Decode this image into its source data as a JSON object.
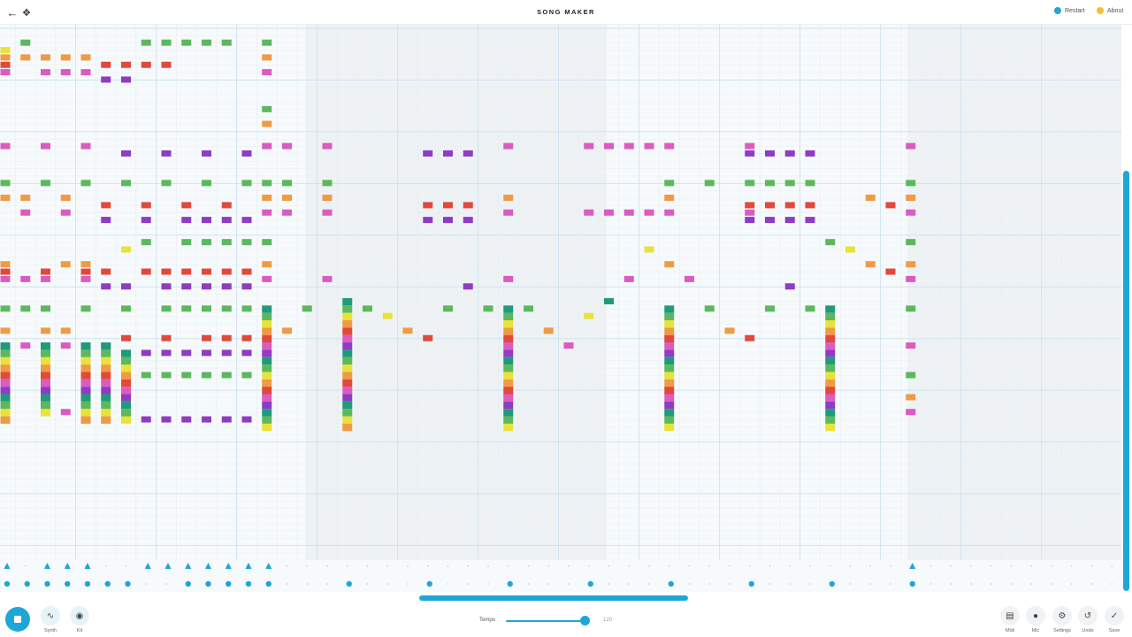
{
  "header": {
    "title": "SONG MAKER",
    "back_icon": "arrow-left-icon",
    "expand_icon": "move-icon",
    "restart_label": "Restart",
    "about_label": "About",
    "restart_color": "#1fa6d8",
    "about_color": "#f2c02e"
  },
  "footer": {
    "play_icon": "stop-icon",
    "instruments": [
      {
        "name": "synth",
        "label": "Synth",
        "icon": "waveform-icon"
      },
      {
        "name": "kit",
        "label": "Kit",
        "icon": "drum-icon"
      }
    ],
    "tempo_label": "Tempo",
    "tempo_value": "120",
    "tempo_fraction": 0.9,
    "tools": [
      {
        "name": "midi",
        "label": "Midi",
        "icon": "piano-icon"
      },
      {
        "name": "mic",
        "label": "Mic",
        "icon": "mic-icon"
      },
      {
        "name": "settings",
        "label": "Settings",
        "icon": "gear-icon"
      },
      {
        "name": "undo",
        "label": "Undo",
        "icon": "undo-icon"
      },
      {
        "name": "save",
        "label": "Save",
        "icon": "check-icon"
      }
    ]
  },
  "colors": {
    "accent": "#1fa6d8",
    "green": "#5cb85c",
    "yellow": "#e8e23a",
    "orange": "#ef9a45",
    "red": "#e2493a",
    "pink": "#db5bc1",
    "purple": "#8e3cc4",
    "teal": "#1f9a7a"
  },
  "song": {
    "note_rows": [
      {
        "row": 2,
        "color": "green",
        "cols": [
          1,
          7,
          8,
          9,
          10,
          11,
          13
        ]
      },
      {
        "row": 3,
        "color": "yellow",
        "cols": [
          0
        ]
      },
      {
        "row": 4,
        "color": "orange",
        "cols": [
          0,
          1,
          2,
          3,
          4,
          13
        ]
      },
      {
        "row": 5,
        "color": "red",
        "cols": [
          0,
          5,
          6,
          7,
          8
        ]
      },
      {
        "row": 6,
        "color": "pink",
        "cols": [
          0,
          2,
          3,
          4,
          13
        ]
      },
      {
        "row": 7,
        "color": "purple",
        "cols": [
          5,
          6
        ]
      },
      {
        "row": 11,
        "color": "green",
        "cols": [
          13
        ]
      },
      {
        "row": 13,
        "color": "orange",
        "cols": [
          13
        ]
      },
      {
        "row": 16,
        "color": "pink",
        "cols": [
          0,
          2,
          4,
          13,
          14,
          16,
          25,
          29,
          30,
          31,
          32,
          33,
          37,
          45
        ]
      },
      {
        "row": 17,
        "color": "purple",
        "cols": [
          6,
          8,
          10,
          12,
          21,
          22,
          23,
          37,
          38,
          39,
          40
        ]
      },
      {
        "row": 21,
        "color": "green",
        "cols": [
          0,
          2,
          4,
          6,
          8,
          10,
          12,
          13,
          14,
          16,
          33,
          35,
          37,
          38,
          39,
          40,
          45
        ]
      },
      {
        "row": 23,
        "color": "orange",
        "cols": [
          0,
          1,
          3,
          13,
          14,
          16,
          25,
          33,
          43,
          45
        ]
      },
      {
        "row": 24,
        "color": "red",
        "cols": [
          5,
          7,
          9,
          11,
          21,
          22,
          23,
          37,
          38,
          39,
          40,
          44
        ]
      },
      {
        "row": 25,
        "color": "pink",
        "cols": [
          1,
          3,
          13,
          14,
          16,
          25,
          29,
          30,
          31,
          32,
          33,
          37,
          45
        ]
      },
      {
        "row": 26,
        "color": "purple",
        "cols": [
          5,
          7,
          9,
          10,
          11,
          12,
          21,
          22,
          23,
          37,
          38,
          39,
          40
        ]
      },
      {
        "row": 29,
        "color": "green",
        "cols": [
          7,
          9,
          10,
          11,
          12,
          13,
          41,
          45
        ]
      },
      {
        "row": 30,
        "color": "yellow",
        "cols": [
          6,
          32,
          42
        ]
      },
      {
        "row": 32,
        "color": "orange",
        "cols": [
          0,
          3,
          4,
          13,
          33,
          43,
          45
        ]
      },
      {
        "row": 33,
        "color": "red",
        "cols": [
          0,
          2,
          4,
          5,
          7,
          8,
          9,
          10,
          11,
          12,
          44
        ]
      },
      {
        "row": 34,
        "color": "pink",
        "cols": [
          0,
          1,
          2,
          4,
          13,
          16,
          25,
          31,
          34,
          45
        ]
      },
      {
        "row": 35,
        "color": "purple",
        "cols": [
          5,
          6,
          8,
          9,
          10,
          11,
          12,
          23,
          39
        ]
      },
      {
        "row": 37,
        "color": "teal",
        "cols": [
          30
        ]
      },
      {
        "row": 38,
        "color": "green",
        "cols": [
          0,
          1,
          2,
          4,
          6,
          8,
          9,
          10,
          11,
          12,
          15,
          18,
          22,
          24,
          26,
          35,
          38,
          40,
          45
        ]
      },
      {
        "row": 39,
        "color": "yellow",
        "cols": [
          19,
          29
        ]
      },
      {
        "row": 41,
        "color": "orange",
        "cols": [
          0,
          2,
          3,
          14,
          20,
          27,
          36
        ]
      },
      {
        "row": 42,
        "color": "red",
        "cols": [
          6,
          8,
          10,
          11,
          12,
          21,
          37
        ]
      },
      {
        "row": 43,
        "color": "pink",
        "cols": [
          0,
          1,
          2,
          3,
          4,
          5,
          28,
          45
        ]
      },
      {
        "row": 44,
        "color": "purple",
        "cols": [
          6,
          7,
          8,
          9,
          10,
          11,
          12
        ]
      },
      {
        "row": 47,
        "color": "green",
        "cols": [
          6,
          7,
          8,
          9,
          10,
          11,
          12,
          45
        ]
      },
      {
        "row": 50,
        "color": "orange",
        "cols": [
          45
        ]
      },
      {
        "row": 52,
        "color": "pink",
        "cols": [
          2,
          3,
          45
        ]
      },
      {
        "row": 53,
        "color": "purple",
        "cols": [
          6,
          7,
          8,
          9,
          10,
          11,
          12
        ]
      }
    ],
    "chords": [
      {
        "col": 0,
        "from": 43,
        "to": 53
      },
      {
        "col": 2,
        "from": 43,
        "to": 52
      },
      {
        "col": 4,
        "from": 43,
        "to": 53
      },
      {
        "col": 5,
        "from": 43,
        "to": 53
      },
      {
        "col": 6,
        "from": 44,
        "to": 53
      },
      {
        "col": 13,
        "from": 38,
        "to": 54
      },
      {
        "col": 17,
        "from": 37,
        "to": 54
      },
      {
        "col": 25,
        "from": 38,
        "to": 54
      },
      {
        "col": 33,
        "from": 38,
        "to": 54
      },
      {
        "col": 41,
        "from": 38,
        "to": 54
      }
    ],
    "rhythm_triangles": [
      0,
      2,
      3,
      4,
      7,
      8,
      9,
      10,
      11,
      12,
      13,
      45
    ],
    "rhythm_circles": [
      0,
      1,
      2,
      3,
      4,
      5,
      6,
      9,
      10,
      11,
      12,
      13,
      17,
      21,
      25,
      29,
      33,
      37,
      41,
      45
    ]
  }
}
